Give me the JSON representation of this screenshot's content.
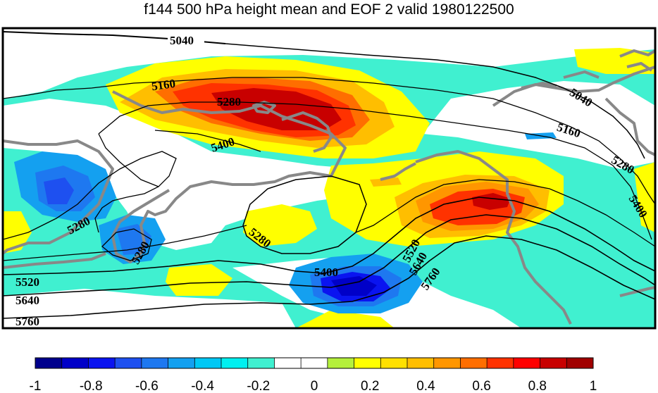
{
  "title": "f144 500 hPa height mean and EOF 2 valid 1980122500",
  "colorbar": {
    "colors": [
      "#00008c",
      "#0000c8",
      "#0a14f0",
      "#1e50f0",
      "#1e78f0",
      "#14a0f0",
      "#00c8f5",
      "#00f0f0",
      "#40f0d0",
      "#ffffff",
      "#ffffff",
      "#b4f03c",
      "#ffff00",
      "#ffe000",
      "#ffbe00",
      "#ff9600",
      "#ff6e00",
      "#ff3200",
      "#ff0000",
      "#c80000",
      "#a00000"
    ],
    "ticks": [
      "-1",
      "-0.8",
      "-0.6",
      "-0.4",
      "-0.2",
      "0",
      "0.2",
      "0.4",
      "0.6",
      "0.8",
      "1"
    ]
  },
  "contour_labels": [
    {
      "text": "5040"
    },
    {
      "text": "5160"
    },
    {
      "text": "5280"
    },
    {
      "text": "5400"
    },
    {
      "text": "5040"
    },
    {
      "text": "5160"
    },
    {
      "text": "5280"
    },
    {
      "text": "5400"
    },
    {
      "text": "5280"
    },
    {
      "text": "5280"
    },
    {
      "text": "5280"
    },
    {
      "text": "5400"
    },
    {
      "text": "5520"
    },
    {
      "text": "5640"
    },
    {
      "text": "5760"
    },
    {
      "text": "5520"
    },
    {
      "text": "5640"
    },
    {
      "text": "5760"
    }
  ],
  "colors": {
    "coastline": "#888888",
    "contour": "#000000",
    "frame": "#000000"
  }
}
